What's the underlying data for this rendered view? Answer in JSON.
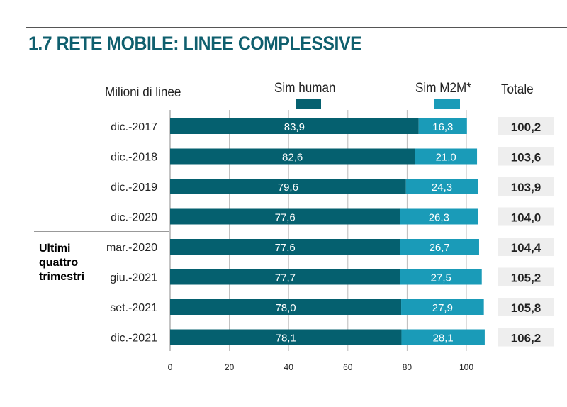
{
  "title": "1.7 RETE MOBILE: LINEE COMPLESSIVE",
  "chart_data": {
    "type": "bar",
    "stacked": true,
    "orientation": "horizontal",
    "unit_label": "Milioni di linee",
    "categories": [
      "dic.-2017",
      "dic.-2018",
      "dic.-2019",
      "dic.-2020",
      "mar.-2020",
      "giu.-2021",
      "set.-2021",
      "dic.-2021"
    ],
    "group_label": "Ultimi quattro trimestri",
    "series": [
      {
        "name": "Sim human",
        "color": "#05606f",
        "values": [
          83.9,
          82.6,
          79.6,
          77.6,
          77.6,
          77.7,
          78.0,
          78.1
        ],
        "labels": [
          "83,9",
          "82,6",
          "79,6",
          "77,6",
          "77,6",
          "77,7",
          "78,0",
          "78,1"
        ]
      },
      {
        "name": "Sim M2M*",
        "color": "#1a9bb8",
        "values": [
          16.3,
          21.0,
          24.3,
          26.3,
          26.7,
          27.5,
          27.9,
          28.1
        ],
        "labels": [
          "16,3",
          "21,0",
          "24,3",
          "26,3",
          "26,7",
          "27,5",
          "27,9",
          "28,1"
        ]
      }
    ],
    "totals_header": "Totale",
    "totals": [
      "100,2",
      "103,6",
      "103,9",
      "104,0",
      "104,4",
      "105,2",
      "105,8",
      "106,2"
    ],
    "xlim": [
      0,
      100
    ],
    "xticks": [
      0,
      20,
      40,
      60,
      80,
      100
    ],
    "grid": true,
    "legend": "top"
  }
}
